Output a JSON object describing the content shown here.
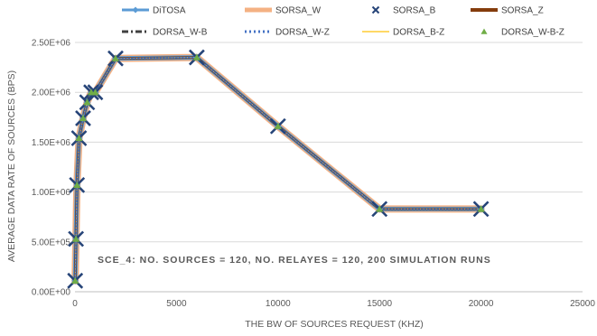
{
  "chart_data": {
    "type": "line",
    "xlabel": "THE BW OF SOURCES REQUEST (KHZ)",
    "ylabel": "AVERAGE DATA RATE OF SOURCES (BPS)",
    "xlim": [
      0,
      25000
    ],
    "ylim": [
      0,
      2500000
    ],
    "x_ticks": [
      0,
      5000,
      10000,
      15000,
      20000,
      25000
    ],
    "y_ticks": [
      0,
      500000,
      1000000,
      1500000,
      2000000,
      2500000
    ],
    "x_tick_labels": [
      "0",
      "5000",
      "10000",
      "15000",
      "20000",
      "25000"
    ],
    "y_tick_labels": [
      "0.00E+00",
      "5.00E+05",
      "1.00E+06",
      "1.50E+06",
      "2.00E+06",
      "2.50E+06"
    ],
    "grid": "horizontal",
    "legend_position": "top",
    "annotation": "SCE_4: NO. SOURCES = 120, NO. RELAYES = 120, 200 SIMULATION RUNS",
    "x": [
      10,
      50,
      100,
      200,
      400,
      600,
      800,
      1000,
      2000,
      6000,
      10000,
      15000,
      20000
    ],
    "series": [
      {
        "name": "DiTOSA",
        "color": "#5b9bd5",
        "style": "line-diamond",
        "values": [
          110000,
          530000,
          1070000,
          1540000,
          1740000,
          1900000,
          2000000,
          2000000,
          2340000,
          2350000,
          1660000,
          830000,
          830000
        ]
      },
      {
        "name": "SORSA_W",
        "color": "#f4b183",
        "style": "thick-line",
        "values": [
          110000,
          530000,
          1070000,
          1540000,
          1740000,
          1900000,
          2000000,
          2000000,
          2340000,
          2350000,
          1660000,
          830000,
          830000
        ]
      },
      {
        "name": "SORSA_B",
        "color": "#264478",
        "style": "x-marker",
        "values": [
          110000,
          530000,
          1070000,
          1540000,
          1740000,
          1900000,
          2000000,
          2000000,
          2340000,
          2350000,
          1660000,
          830000,
          830000
        ]
      },
      {
        "name": "SORSA_Z",
        "color": "#843c0c",
        "style": "line",
        "values": [
          110000,
          530000,
          1070000,
          1540000,
          1740000,
          1900000,
          2000000,
          2000000,
          2340000,
          2350000,
          1660000,
          830000,
          830000
        ]
      },
      {
        "name": "DORSA_W-B",
        "color": "#404040",
        "style": "dash-dot",
        "values": [
          110000,
          530000,
          1070000,
          1540000,
          1740000,
          1900000,
          2000000,
          2000000,
          2340000,
          2350000,
          1660000,
          830000,
          830000
        ]
      },
      {
        "name": "DORSA_W-Z",
        "color": "#4472c4",
        "style": "dotted",
        "values": [
          110000,
          530000,
          1070000,
          1540000,
          1740000,
          1900000,
          2000000,
          2000000,
          2340000,
          2350000,
          1660000,
          830000,
          830000
        ]
      },
      {
        "name": "DORSA_B-Z",
        "color": "#ffd966",
        "style": "thin-line",
        "values": [
          110000,
          530000,
          1070000,
          1540000,
          1740000,
          1900000,
          2000000,
          2000000,
          2340000,
          2350000,
          1660000,
          830000,
          830000
        ]
      },
      {
        "name": "DORSA_W-B-Z",
        "color": "#70ad47",
        "style": "triangle-marker",
        "values": [
          110000,
          530000,
          1070000,
          1540000,
          1740000,
          1900000,
          2000000,
          2000000,
          2340000,
          2350000,
          1660000,
          830000,
          830000
        ]
      }
    ]
  }
}
